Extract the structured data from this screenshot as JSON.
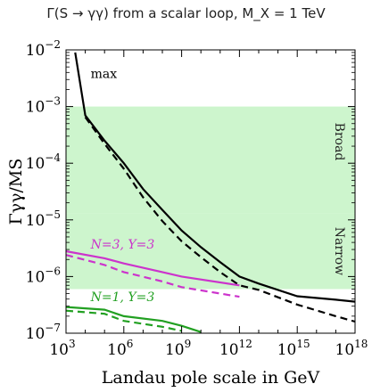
{
  "chart_data": {
    "type": "line",
    "title": "Γ(S → γγ) from a scalar loop, M_X = 1 TeV",
    "xlabel": "Landau pole scale in GeV",
    "ylabel": "Γγγ/MS",
    "xscale": "log",
    "yscale": "log",
    "xlim": [
      1000,
      1e+18
    ],
    "ylim": [
      1e-07,
      0.01
    ],
    "x_ticks": [
      "10^3",
      "10^6",
      "10^9",
      "10^12",
      "10^15",
      "10^18"
    ],
    "y_ticks": [
      "10^-7",
      "10^-6",
      "10^-5",
      "10^-4",
      "10^-3",
      "10^-2"
    ],
    "grid": false,
    "regions": [
      {
        "name": "Broad",
        "ymin": 1.3e-05,
        "ymax": 0.001,
        "color": "#cdf5cd"
      },
      {
        "name": "Narrow",
        "ymin": 6e-07,
        "ymax": 1.3e-05,
        "color": "#cdf5cd"
      }
    ],
    "series": [
      {
        "name": "max",
        "color": "#000000",
        "style": "solid",
        "points": [
          [
            3000,
            0.009
          ],
          [
            10000,
            0.0007
          ],
          [
            100000,
            0.00025
          ],
          [
            1000000,
            0.0001
          ],
          [
            10000000,
            3.5e-05
          ],
          [
            100000000,
            1.5e-05
          ],
          [
            1000000000,
            6.5e-06
          ],
          [
            10000000000,
            3.3e-06
          ],
          [
            100000000000.0,
            1.8e-06
          ],
          [
            1000000000000.0,
            1e-06
          ],
          [
            10000000000000.0,
            7.5e-07
          ],
          [
            1000000000000000.0,
            4.5e-07
          ],
          [
            1e+17,
            3.9e-07
          ],
          [
            1e+18,
            3.6e-07
          ]
        ]
      },
      {
        "name": "max",
        "color": "#000000",
        "style": "dashed",
        "points": [
          [
            10000,
            0.00065
          ],
          [
            100000,
            0.00022
          ],
          [
            1000000,
            8e-05
          ],
          [
            10000000,
            2.5e-05
          ],
          [
            100000000,
            9.5e-06
          ],
          [
            1000000000,
            4.2e-06
          ],
          [
            10000000000,
            2.2e-06
          ],
          [
            100000000000.0,
            1.2e-06
          ],
          [
            1000000000000.0,
            7e-07
          ],
          [
            10000000000000.0,
            5.8e-07
          ],
          [
            1000000000000000.0,
            3.2e-07
          ],
          [
            1e+17,
            2e-07
          ],
          [
            1e+18,
            1.6e-07
          ]
        ]
      },
      {
        "name": "N=3, Y=3",
        "color": "#cc33cc",
        "style": "solid",
        "points": [
          [
            1000,
            2.8e-06
          ],
          [
            100000,
            2.1e-06
          ],
          [
            1000000,
            1.7e-06
          ],
          [
            100000000,
            1.2e-06
          ],
          [
            1000000000,
            1e-06
          ],
          [
            1000000000000.0,
            7e-07
          ]
        ]
      },
      {
        "name": "N=3, Y=3",
        "color": "#cc33cc",
        "style": "dashed",
        "points": [
          [
            1000,
            2.4e-06
          ],
          [
            100000,
            1.6e-06
          ],
          [
            1000000,
            1.2e-06
          ],
          [
            100000000,
            8.2e-07
          ],
          [
            1000000000,
            6.5e-07
          ],
          [
            1000000000000.0,
            4.4e-07
          ]
        ]
      },
      {
        "name": "N=1, Y=3",
        "color": "#22a022",
        "style": "solid",
        "points": [
          [
            1000,
            2.9e-07
          ],
          [
            100000,
            2.6e-07
          ],
          [
            1000000,
            2e-07
          ],
          [
            100000000,
            1.65e-07
          ],
          [
            1000000000,
            1.35e-07
          ],
          [
            10000000000.0,
            1.05e-07
          ]
        ]
      },
      {
        "name": "N=1, Y=3",
        "color": "#22a022",
        "style": "dashed",
        "points": [
          [
            1000,
            2.5e-07
          ],
          [
            100000,
            2.2e-07
          ],
          [
            1000000,
            1.65e-07
          ],
          [
            100000000,
            1.3e-07
          ],
          [
            1000000000,
            1.1e-07
          ]
        ]
      }
    ],
    "annotations": [
      {
        "text": "max",
        "color": "#000000"
      },
      {
        "text": "Broad",
        "color": "#222222"
      },
      {
        "text": "Narrow",
        "color": "#222222"
      },
      {
        "text": "N=3, Y=3",
        "color": "#cc33cc"
      },
      {
        "text": "N=1, Y=3",
        "color": "#22a022"
      }
    ]
  }
}
